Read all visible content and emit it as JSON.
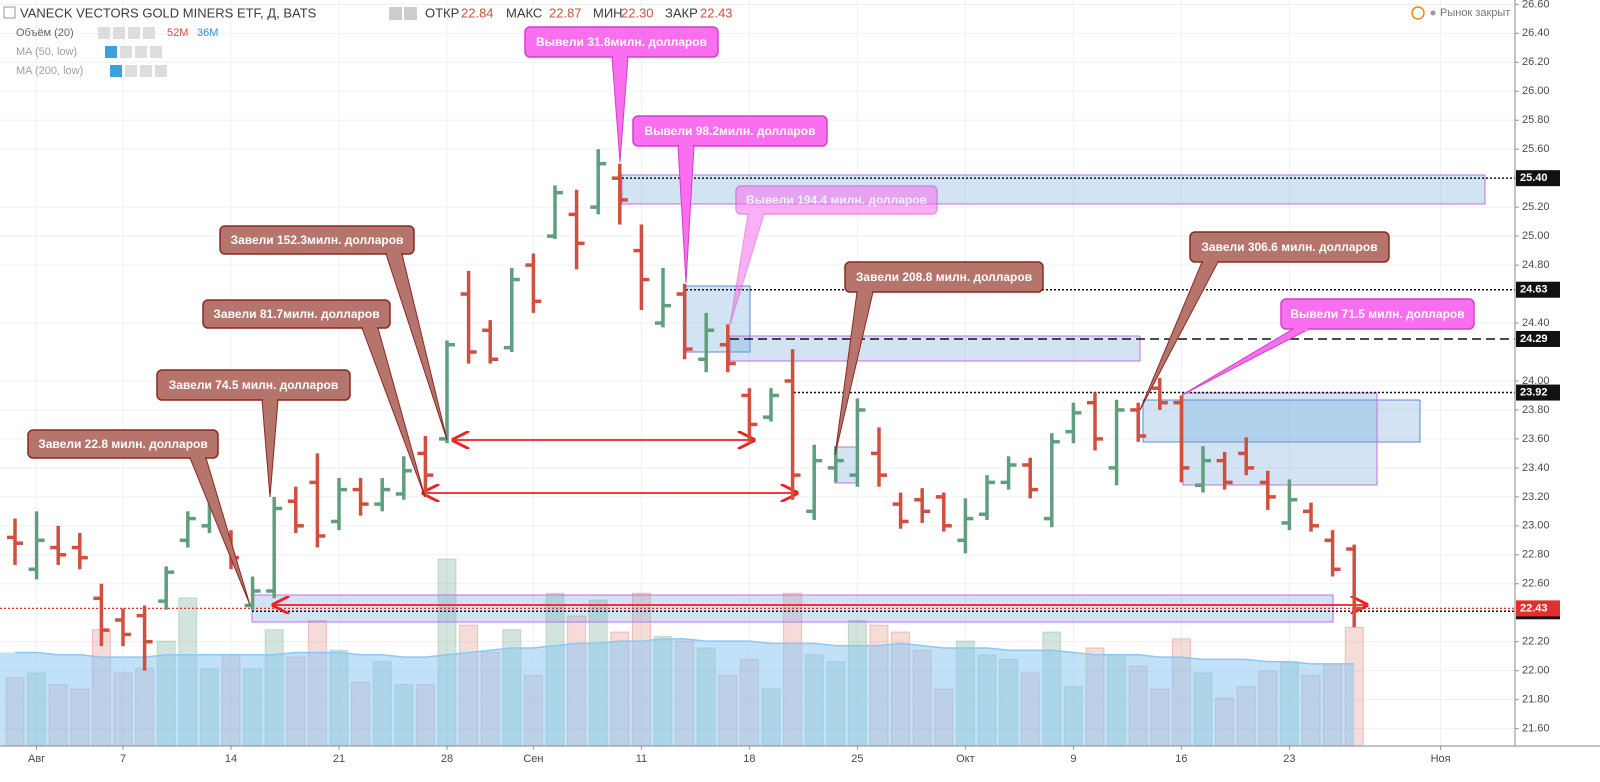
{
  "header": {
    "title": "VANECK VECTORS GOLD MINERS ETF, Д, BATS",
    "open_label": "ОТКР",
    "open": "22.84",
    "high_label": "МАКС",
    "high": "22.87",
    "low_label": "МИН",
    "low": "22.30",
    "close_label": "ЗАКР",
    "close": "22.43",
    "volume_label": "Объём (20)",
    "volume": "52M",
    "volume_ma": "36M",
    "ma50": "MA (50, low)",
    "ma200": "MA (200, low)",
    "status": "Рынок закрыт"
  },
  "chart_data": {
    "type": "ohlc",
    "open": [
      22.92,
      22.7,
      22.85,
      22.85,
      22.5,
      22.35,
      22.38,
      22.48,
      22.9,
      23.0,
      22.93,
      22.45,
      22.55,
      23.17,
      23.3,
      23.03,
      23.25,
      23.15,
      23.22,
      23.5,
      23.6,
      24.6,
      24.35,
      24.23,
      24.8,
      25.0,
      25.15,
      25.2,
      25.4,
      24.9,
      24.4,
      24.6,
      24.15,
      24.25,
      23.9,
      23.75,
      24.0,
      23.1,
      23.4,
      23.35,
      23.5,
      23.15,
      23.18,
      23.2,
      22.9,
      23.08,
      23.3,
      23.42,
      23.05,
      23.65,
      23.85,
      23.4,
      23.8,
      23.95,
      23.85,
      23.28,
      23.45,
      23.5,
      23.3,
      23.02,
      23.1,
      22.9,
      22.84
    ],
    "high": [
      23.05,
      23.1,
      23.0,
      22.95,
      22.6,
      22.43,
      22.45,
      22.72,
      23.1,
      23.22,
      22.97,
      22.65,
      23.2,
      23.27,
      23.5,
      23.33,
      23.33,
      23.33,
      23.48,
      23.62,
      24.28,
      24.76,
      24.42,
      24.78,
      24.88,
      25.35,
      25.32,
      25.6,
      25.5,
      25.08,
      24.78,
      24.67,
      24.47,
      24.39,
      23.95,
      23.95,
      24.22,
      23.56,
      23.55,
      23.88,
      23.68,
      23.23,
      23.26,
      23.23,
      23.19,
      23.35,
      23.48,
      23.47,
      23.64,
      23.85,
      23.92,
      23.87,
      23.85,
      24.02,
      23.9,
      23.55,
      23.51,
      23.61,
      23.38,
      23.32,
      23.16,
      22.97,
      22.87
    ],
    "low": [
      22.73,
      22.63,
      22.73,
      22.7,
      22.17,
      22.17,
      22.0,
      22.42,
      22.85,
      22.95,
      22.7,
      22.42,
      22.5,
      22.95,
      22.85,
      22.97,
      23.07,
      23.1,
      23.18,
      23.2,
      23.57,
      24.12,
      24.12,
      24.2,
      24.47,
      24.98,
      24.77,
      25.15,
      25.08,
      24.49,
      24.37,
      24.15,
      24.06,
      24.06,
      23.57,
      23.72,
      23.18,
      23.04,
      23.3,
      23.27,
      23.27,
      22.98,
      23.02,
      22.96,
      22.81,
      23.04,
      23.25,
      23.19,
      22.99,
      23.57,
      23.52,
      23.28,
      23.58,
      23.8,
      23.3,
      23.23,
      23.25,
      23.35,
      23.11,
      22.97,
      22.96,
      22.65,
      22.3
    ],
    "close": [
      22.88,
      22.9,
      22.8,
      22.78,
      22.28,
      22.25,
      22.2,
      22.68,
      23.05,
      23.15,
      22.78,
      22.55,
      23.12,
      23.0,
      22.93,
      23.25,
      23.15,
      23.25,
      23.38,
      23.35,
      24.25,
      24.2,
      24.15,
      24.7,
      24.55,
      25.3,
      24.95,
      25.5,
      25.25,
      24.7,
      24.52,
      24.22,
      24.35,
      24.12,
      23.7,
      23.9,
      23.35,
      23.45,
      23.45,
      23.8,
      23.35,
      23.03,
      23.1,
      23.0,
      23.05,
      23.3,
      23.42,
      23.25,
      23.58,
      23.78,
      23.6,
      23.8,
      23.62,
      23.85,
      23.4,
      23.45,
      23.3,
      23.4,
      23.2,
      23.18,
      23.0,
      22.7,
      22.43
    ],
    "volume": [
      30,
      32,
      27,
      25,
      51,
      32,
      34,
      46,
      65,
      34,
      40,
      34,
      51,
      39,
      55,
      42,
      28,
      37,
      27,
      27,
      82,
      53,
      41,
      51,
      31,
      67,
      57,
      64,
      50,
      67,
      48,
      46,
      43,
      31,
      38,
      25,
      67,
      40,
      37,
      55,
      53,
      50,
      42,
      25,
      46,
      40,
      38,
      32,
      50,
      26,
      43,
      40,
      35,
      25,
      47,
      32,
      21,
      26,
      33,
      37,
      31,
      36,
      52
    ],
    "volume_ma": [
      41,
      41,
      40,
      40,
      39,
      39,
      39,
      40,
      40,
      40,
      40,
      40,
      40,
      41,
      41,
      41,
      40,
      40,
      39,
      39,
      40,
      41,
      42,
      43,
      43,
      44,
      45,
      45,
      46,
      46,
      47,
      47,
      46,
      46,
      46,
      45,
      45,
      45,
      44,
      44,
      44,
      45,
      44,
      43,
      43,
      43,
      42,
      42,
      42,
      41,
      40,
      40,
      40,
      39,
      39,
      38,
      38,
      38,
      37,
      37,
      36,
      36,
      36
    ],
    "up_color": "#5f9f7d",
    "down_color": "#d0503f",
    "volume_ma_color": "#8cc8f2",
    "ylim": [
      21.48,
      26.63
    ],
    "yticks": [
      {
        "value": 21.6,
        "label": "21.60"
      },
      {
        "value": 21.8,
        "label": "21.80"
      },
      {
        "value": 22,
        "label": "22.00"
      },
      {
        "value": 22.2,
        "label": "22.20"
      },
      {
        "value": 22.6,
        "label": "22.60"
      },
      {
        "value": 22.8,
        "label": "22.80"
      },
      {
        "value": 23,
        "label": "23.00"
      },
      {
        "value": 23.2,
        "label": "23.20"
      },
      {
        "value": 23.4,
        "label": "23.40"
      },
      {
        "value": 23.6,
        "label": "23.60"
      },
      {
        "value": 23.8,
        "label": "23.80"
      },
      {
        "value": 24,
        "label": "24.00"
      },
      {
        "value": 24.4,
        "label": "24.40"
      },
      {
        "value": 24.8,
        "label": "24.80"
      },
      {
        "value": 25,
        "label": "25.00"
      },
      {
        "value": 25.2,
        "label": "25.20"
      },
      {
        "value": 25.6,
        "label": "25.60"
      },
      {
        "value": 25.8,
        "label": "25.80"
      },
      {
        "value": 26,
        "label": "26.00"
      },
      {
        "value": 26.2,
        "label": "26.20"
      },
      {
        "value": 26.4,
        "label": "26.40"
      },
      {
        "value": 26.6,
        "label": "26.60"
      }
    ],
    "xticks": [
      {
        "value": 1,
        "label": "Авг"
      },
      {
        "value": 5,
        "label": "7"
      },
      {
        "value": 10,
        "label": "14"
      },
      {
        "value": 15,
        "label": "21"
      },
      {
        "value": 20,
        "label": "28"
      },
      {
        "value": 24,
        "label": "Сен"
      },
      {
        "value": 29,
        "label": "11"
      },
      {
        "value": 34,
        "label": "18"
      },
      {
        "value": 39,
        "label": "25"
      },
      {
        "value": 44,
        "label": "Окт"
      },
      {
        "value": 49,
        "label": "9"
      },
      {
        "value": 54,
        "label": "16"
      },
      {
        "value": 59,
        "label": "23"
      },
      {
        "value": 66,
        "label": "Ноя"
      }
    ],
    "levels": [
      {
        "value": 25.4,
        "label": "25.40"
      },
      24.63,
      24.29,
      23.92,
      22.41
    ],
    "last_price": 22.43,
    "grid": true,
    "annotations": [
      {
        "text": "Завели 22.8 милн. долларов",
        "color": "#b5746c"
      },
      {
        "text": "Завели 74.5 милн. долларов",
        "color": "#b5746c"
      },
      {
        "text": "Завели 81.7милн. долларов",
        "color": "#b5746c"
      },
      {
        "text": "Завели 152.3милн. долларов",
        "color": "#b5746c"
      },
      {
        "text": "Завели 208.8 милн. долларов",
        "color": "#b5746c"
      },
      {
        "text": "Завели 306.6 милн. долларов",
        "color": "#b5746c"
      },
      {
        "text": "Вывели 31.8милн. долларов",
        "color": "#f96ff0"
      },
      {
        "text": "Вывели 98.2милн. долларов",
        "color": "#f96ff0"
      },
      {
        "text": "Вывели 194.4 милн. долларов",
        "color": "#f96ff0"
      },
      {
        "text": "Вывели 71.5 милн. долларов",
        "color": "#f96ff0"
      }
    ]
  }
}
